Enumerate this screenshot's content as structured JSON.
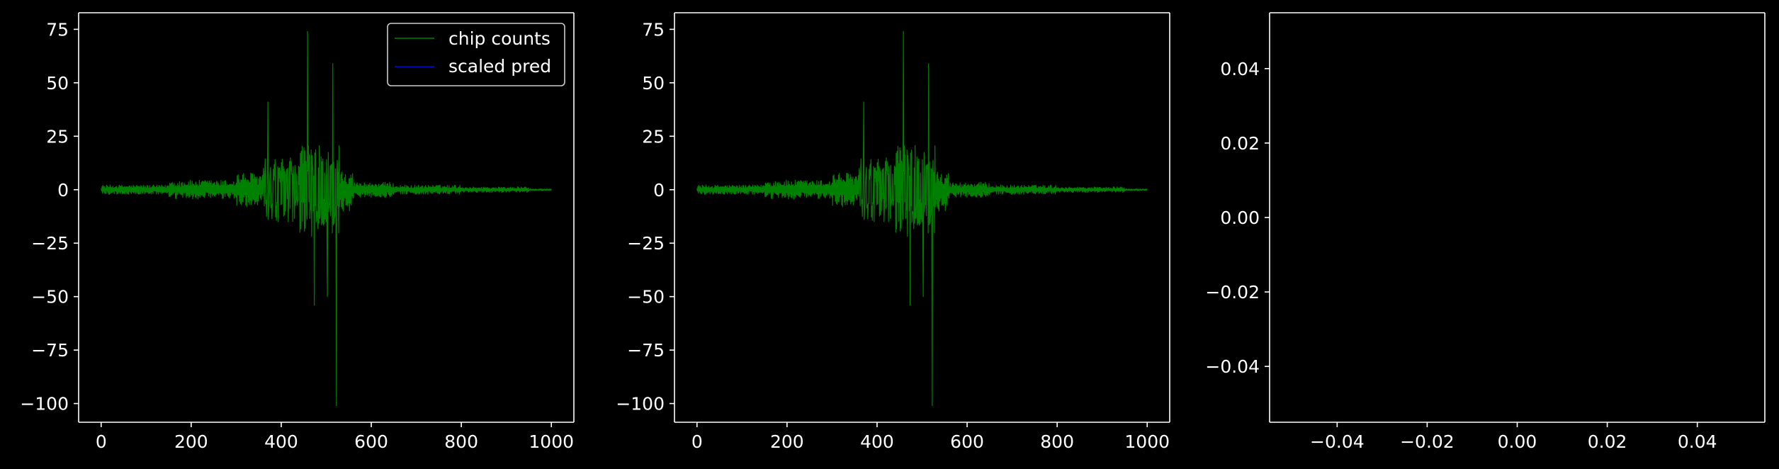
{
  "theme": {
    "background": "#000000",
    "axis_color": "#ffffff",
    "text_color": "#ffffff",
    "chip_color": "#008000",
    "pred_color": "#0000ff"
  },
  "chart_data": [
    {
      "type": "line",
      "panel": "left",
      "xlim": [
        -50,
        1050
      ],
      "ylim": [
        -108.75,
        82.75
      ],
      "xticks": [
        0,
        200,
        400,
        600,
        800,
        1000
      ],
      "xtick_labels": [
        "0",
        "200",
        "400",
        "600",
        "800",
        "1000"
      ],
      "yticks": [
        75,
        50,
        25,
        0,
        -25,
        -50,
        -75,
        -100
      ],
      "ytick_labels": [
        "75",
        "50",
        "25",
        "0",
        "−25",
        "−50",
        "−75",
        "−100"
      ],
      "legend": {
        "placement": "upper-right",
        "entries": [
          {
            "label": "chip counts",
            "color": "#008000"
          },
          {
            "label": "scaled pred",
            "color": "#0000ff"
          }
        ]
      },
      "series": [
        {
          "name": "chip counts",
          "color": "#008000",
          "n_points": 1000,
          "x_range": [
            0,
            1000
          ],
          "y_min": -101,
          "y_max": 74,
          "peaks": [
            {
              "x": 370,
              "y": 41
            },
            {
              "x": 458,
              "y": 74
            },
            {
              "x": 515,
              "y": 59
            },
            {
              "x": 473,
              "y": -54
            },
            {
              "x": 503,
              "y": -50
            },
            {
              "x": 523,
              "y": -101
            }
          ]
        },
        {
          "name": "scaled pred",
          "color": "#0000ff",
          "values": []
        }
      ]
    },
    {
      "type": "line",
      "panel": "middle",
      "xlim": [
        -50,
        1050
      ],
      "ylim": [
        -108.75,
        82.75
      ],
      "xticks": [
        0,
        200,
        400,
        600,
        800,
        1000
      ],
      "xtick_labels": [
        "0",
        "200",
        "400",
        "600",
        "800",
        "1000"
      ],
      "yticks": [
        75,
        50,
        25,
        0,
        -25,
        -50,
        -75,
        -100
      ],
      "ytick_labels": [
        "75",
        "50",
        "25",
        "0",
        "−25",
        "−50",
        "−75",
        "−100"
      ],
      "series": [
        {
          "color": "#008000",
          "n_points": 1000,
          "x_range": [
            0,
            1000
          ],
          "y_min": -101,
          "y_max": 74,
          "peaks": [
            {
              "x": 370,
              "y": 41
            },
            {
              "x": 458,
              "y": 74
            },
            {
              "x": 515,
              "y": 59
            },
            {
              "x": 473,
              "y": -54
            },
            {
              "x": 503,
              "y": -50
            },
            {
              "x": 523,
              "y": -101
            }
          ]
        }
      ]
    },
    {
      "type": "line",
      "panel": "right",
      "xlim": [
        -0.055,
        0.055
      ],
      "ylim": [
        -0.055,
        0.055
      ],
      "xticks": [
        -0.04,
        -0.02,
        0,
        0.02,
        0.04
      ],
      "xtick_labels": [
        "−0.04",
        "−0.02",
        "0.00",
        "0.02",
        "0.04"
      ],
      "yticks": [
        0.04,
        0.02,
        0,
        -0.02,
        -0.04
      ],
      "ytick_labels": [
        "0.04",
        "0.02",
        "0.00",
        "−0.02",
        "−0.04"
      ],
      "series": []
    }
  ]
}
